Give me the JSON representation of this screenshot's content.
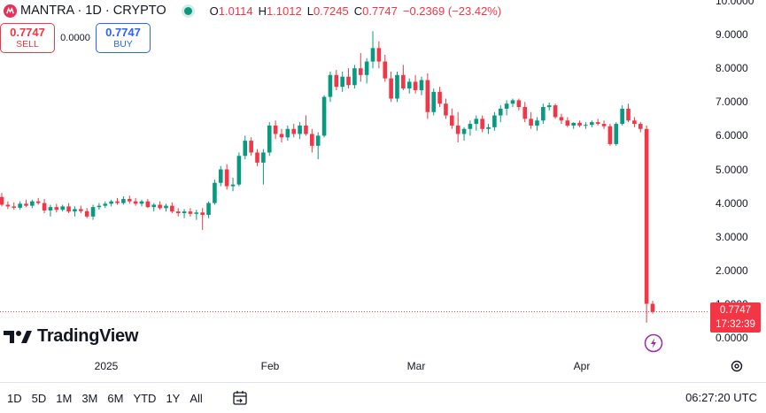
{
  "header": {
    "title": "MANTRA · 1D · CRYPTO",
    "ohlc": [
      {
        "k": "O",
        "v": "1.0114"
      },
      {
        "k": "H",
        "v": "1.1012"
      },
      {
        "k": "L",
        "v": "0.7245"
      },
      {
        "k": "C",
        "v": "0.7747"
      }
    ],
    "change": "−0.2369 (−23.42%)"
  },
  "trade": {
    "sell_price": "0.7747",
    "sell_label": "SELL",
    "spread": "0.0000",
    "buy_price": "0.7747",
    "buy_label": "BUY"
  },
  "brand": "TradingView",
  "last_price": {
    "price": "0.7747",
    "countdown": "17:32:39"
  },
  "price_axis": [
    "10.0000",
    "9.0000",
    "8.0000",
    "7.0000",
    "6.0000",
    "5.0000",
    "4.0000",
    "3.0000",
    "2.0000",
    "1.0000",
    "0.0000"
  ],
  "time_axis": [
    "2025",
    "Feb",
    "Mar",
    "Apr"
  ],
  "toolbar": {
    "timeframes": [
      "1D",
      "5D",
      "1M",
      "3M",
      "6M",
      "YTD",
      "1Y",
      "All"
    ],
    "clock": "06:27:20 UTC"
  },
  "colors": {
    "up": "#089981",
    "down": "#f23645",
    "accent": "#2962ff"
  },
  "chart_data": {
    "type": "candlestick",
    "ylim": [
      0,
      10
    ],
    "candles": [
      [
        4.18,
        4.3,
        3.9,
        3.95
      ],
      [
        3.95,
        4.05,
        3.82,
        3.9
      ],
      [
        3.9,
        4.02,
        3.8,
        3.86
      ],
      [
        3.86,
        4.05,
        3.8,
        3.98
      ],
      [
        3.98,
        4.1,
        3.88,
        3.92
      ],
      [
        3.92,
        4.1,
        3.85,
        4.05
      ],
      [
        4.05,
        4.15,
        3.95,
        4.0
      ],
      [
        4.0,
        4.12,
        3.7,
        3.78
      ],
      [
        3.78,
        3.95,
        3.6,
        3.88
      ],
      [
        3.88,
        3.98,
        3.72,
        3.8
      ],
      [
        3.8,
        3.95,
        3.75,
        3.9
      ],
      [
        3.9,
        4.0,
        3.7,
        3.75
      ],
      [
        3.75,
        3.9,
        3.6,
        3.82
      ],
      [
        3.82,
        3.92,
        3.7,
        3.76
      ],
      [
        3.76,
        3.85,
        3.55,
        3.6
      ],
      [
        3.6,
        3.95,
        3.5,
        3.88
      ],
      [
        3.88,
        4.0,
        3.8,
        3.92
      ],
      [
        3.92,
        4.05,
        3.85,
        3.98
      ],
      [
        3.98,
        4.1,
        3.9,
        4.05
      ],
      [
        4.05,
        4.15,
        3.95,
        4.0
      ],
      [
        4.0,
        4.2,
        3.95,
        4.12
      ],
      [
        4.12,
        4.22,
        3.98,
        4.05
      ],
      [
        4.05,
        4.15,
        3.92,
        3.98
      ],
      [
        3.98,
        4.1,
        3.9,
        4.05
      ],
      [
        4.05,
        4.12,
        3.85,
        3.88
      ],
      [
        3.88,
        4.0,
        3.75,
        3.95
      ],
      [
        3.95,
        4.05,
        3.8,
        3.85
      ],
      [
        3.85,
        3.98,
        3.75,
        3.92
      ],
      [
        3.92,
        4.02,
        3.7,
        3.75
      ],
      [
        3.75,
        3.85,
        3.6,
        3.7
      ],
      [
        3.7,
        3.82,
        3.55,
        3.75
      ],
      [
        3.75,
        3.85,
        3.6,
        3.68
      ],
      [
        3.68,
        3.8,
        3.5,
        3.72
      ],
      [
        3.72,
        3.85,
        3.2,
        3.65
      ],
      [
        3.65,
        4.05,
        3.55,
        4.0
      ],
      [
        4.0,
        4.7,
        3.95,
        4.6
      ],
      [
        4.6,
        5.1,
        4.5,
        5.0
      ],
      [
        5.0,
        5.15,
        4.4,
        4.5
      ],
      [
        4.5,
        4.75,
        4.35,
        4.55
      ],
      [
        4.55,
        5.5,
        4.5,
        5.4
      ],
      [
        5.4,
        6.0,
        5.3,
        5.85
      ],
      [
        5.85,
        5.95,
        5.4,
        5.5
      ],
      [
        5.5,
        5.6,
        5.1,
        5.2
      ],
      [
        5.2,
        5.6,
        4.55,
        5.5
      ],
      [
        5.5,
        6.4,
        5.4,
        6.3
      ],
      [
        6.3,
        6.45,
        5.9,
        6.05
      ],
      [
        6.05,
        6.2,
        5.8,
        5.95
      ],
      [
        5.95,
        6.3,
        5.85,
        6.2
      ],
      [
        6.2,
        6.35,
        5.95,
        6.05
      ],
      [
        6.05,
        6.4,
        5.9,
        6.3
      ],
      [
        6.3,
        6.6,
        6.0,
        6.05
      ],
      [
        6.05,
        6.2,
        5.5,
        5.7
      ],
      [
        5.7,
        6.1,
        5.3,
        6.0
      ],
      [
        6.0,
        7.2,
        5.95,
        7.15
      ],
      [
        7.15,
        7.9,
        7.0,
        7.8
      ],
      [
        7.8,
        7.95,
        7.35,
        7.45
      ],
      [
        7.45,
        7.9,
        7.3,
        7.75
      ],
      [
        7.75,
        8.0,
        7.4,
        7.5
      ],
      [
        7.5,
        8.1,
        7.4,
        8.0
      ],
      [
        8.0,
        8.45,
        7.6,
        7.8
      ],
      [
        7.8,
        8.3,
        7.55,
        8.2
      ],
      [
        8.2,
        9.1,
        8.0,
        8.6
      ],
      [
        8.6,
        8.8,
        8.0,
        8.2
      ],
      [
        8.2,
        8.4,
        7.6,
        7.7
      ],
      [
        7.7,
        7.9,
        7.0,
        7.1
      ],
      [
        7.1,
        7.9,
        7.0,
        7.8
      ],
      [
        7.8,
        8.1,
        7.35,
        7.4
      ],
      [
        7.4,
        7.7,
        7.25,
        7.6
      ],
      [
        7.6,
        7.8,
        7.25,
        7.35
      ],
      [
        7.35,
        7.75,
        7.2,
        7.65
      ],
      [
        7.65,
        7.85,
        6.5,
        6.7
      ],
      [
        6.7,
        7.4,
        6.6,
        7.3
      ],
      [
        7.3,
        7.45,
        6.85,
        6.95
      ],
      [
        6.95,
        7.1,
        6.5,
        6.6
      ],
      [
        6.6,
        6.8,
        6.2,
        6.3
      ],
      [
        6.3,
        6.7,
        5.8,
        6.05
      ],
      [
        6.05,
        6.25,
        5.85,
        6.2
      ],
      [
        6.2,
        6.45,
        6.0,
        6.35
      ],
      [
        6.35,
        6.6,
        6.15,
        6.5
      ],
      [
        6.5,
        6.6,
        6.1,
        6.2
      ],
      [
        6.2,
        6.35,
        6.05,
        6.25
      ],
      [
        6.25,
        6.7,
        6.15,
        6.6
      ],
      [
        6.6,
        6.9,
        6.4,
        6.8
      ],
      [
        6.8,
        7.05,
        6.6,
        6.95
      ],
      [
        6.95,
        7.1,
        6.85,
        7.05
      ],
      [
        7.05,
        7.1,
        6.75,
        6.85
      ],
      [
        6.85,
        7.0,
        6.4,
        6.5
      ],
      [
        6.5,
        6.7,
        6.2,
        6.3
      ],
      [
        6.3,
        6.55,
        6.15,
        6.45
      ],
      [
        6.45,
        6.95,
        6.35,
        6.85
      ],
      [
        6.85,
        6.98,
        6.75,
        6.9
      ],
      [
        6.9,
        6.95,
        6.5,
        6.55
      ],
      [
        6.55,
        6.65,
        6.35,
        6.45
      ],
      [
        6.45,
        6.55,
        6.25,
        6.3
      ],
      [
        6.3,
        6.4,
        6.2,
        6.38
      ],
      [
        6.38,
        6.45,
        6.25,
        6.3
      ],
      [
        6.3,
        6.4,
        6.2,
        6.32
      ],
      [
        6.32,
        6.45,
        6.25,
        6.4
      ],
      [
        6.4,
        6.5,
        6.3,
        6.35
      ],
      [
        6.35,
        6.45,
        6.2,
        6.28
      ],
      [
        6.28,
        6.35,
        5.7,
        5.75
      ],
      [
        5.75,
        6.4,
        5.7,
        6.35
      ],
      [
        6.35,
        6.9,
        6.3,
        6.8
      ],
      [
        6.8,
        6.95,
        6.4,
        6.45
      ],
      [
        6.45,
        6.55,
        6.25,
        6.35
      ],
      [
        6.35,
        6.4,
        6.1,
        6.2
      ],
      [
        6.2,
        6.3,
        0.45,
        1.01
      ],
      [
        1.01,
        1.1,
        0.72,
        0.77
      ]
    ]
  }
}
